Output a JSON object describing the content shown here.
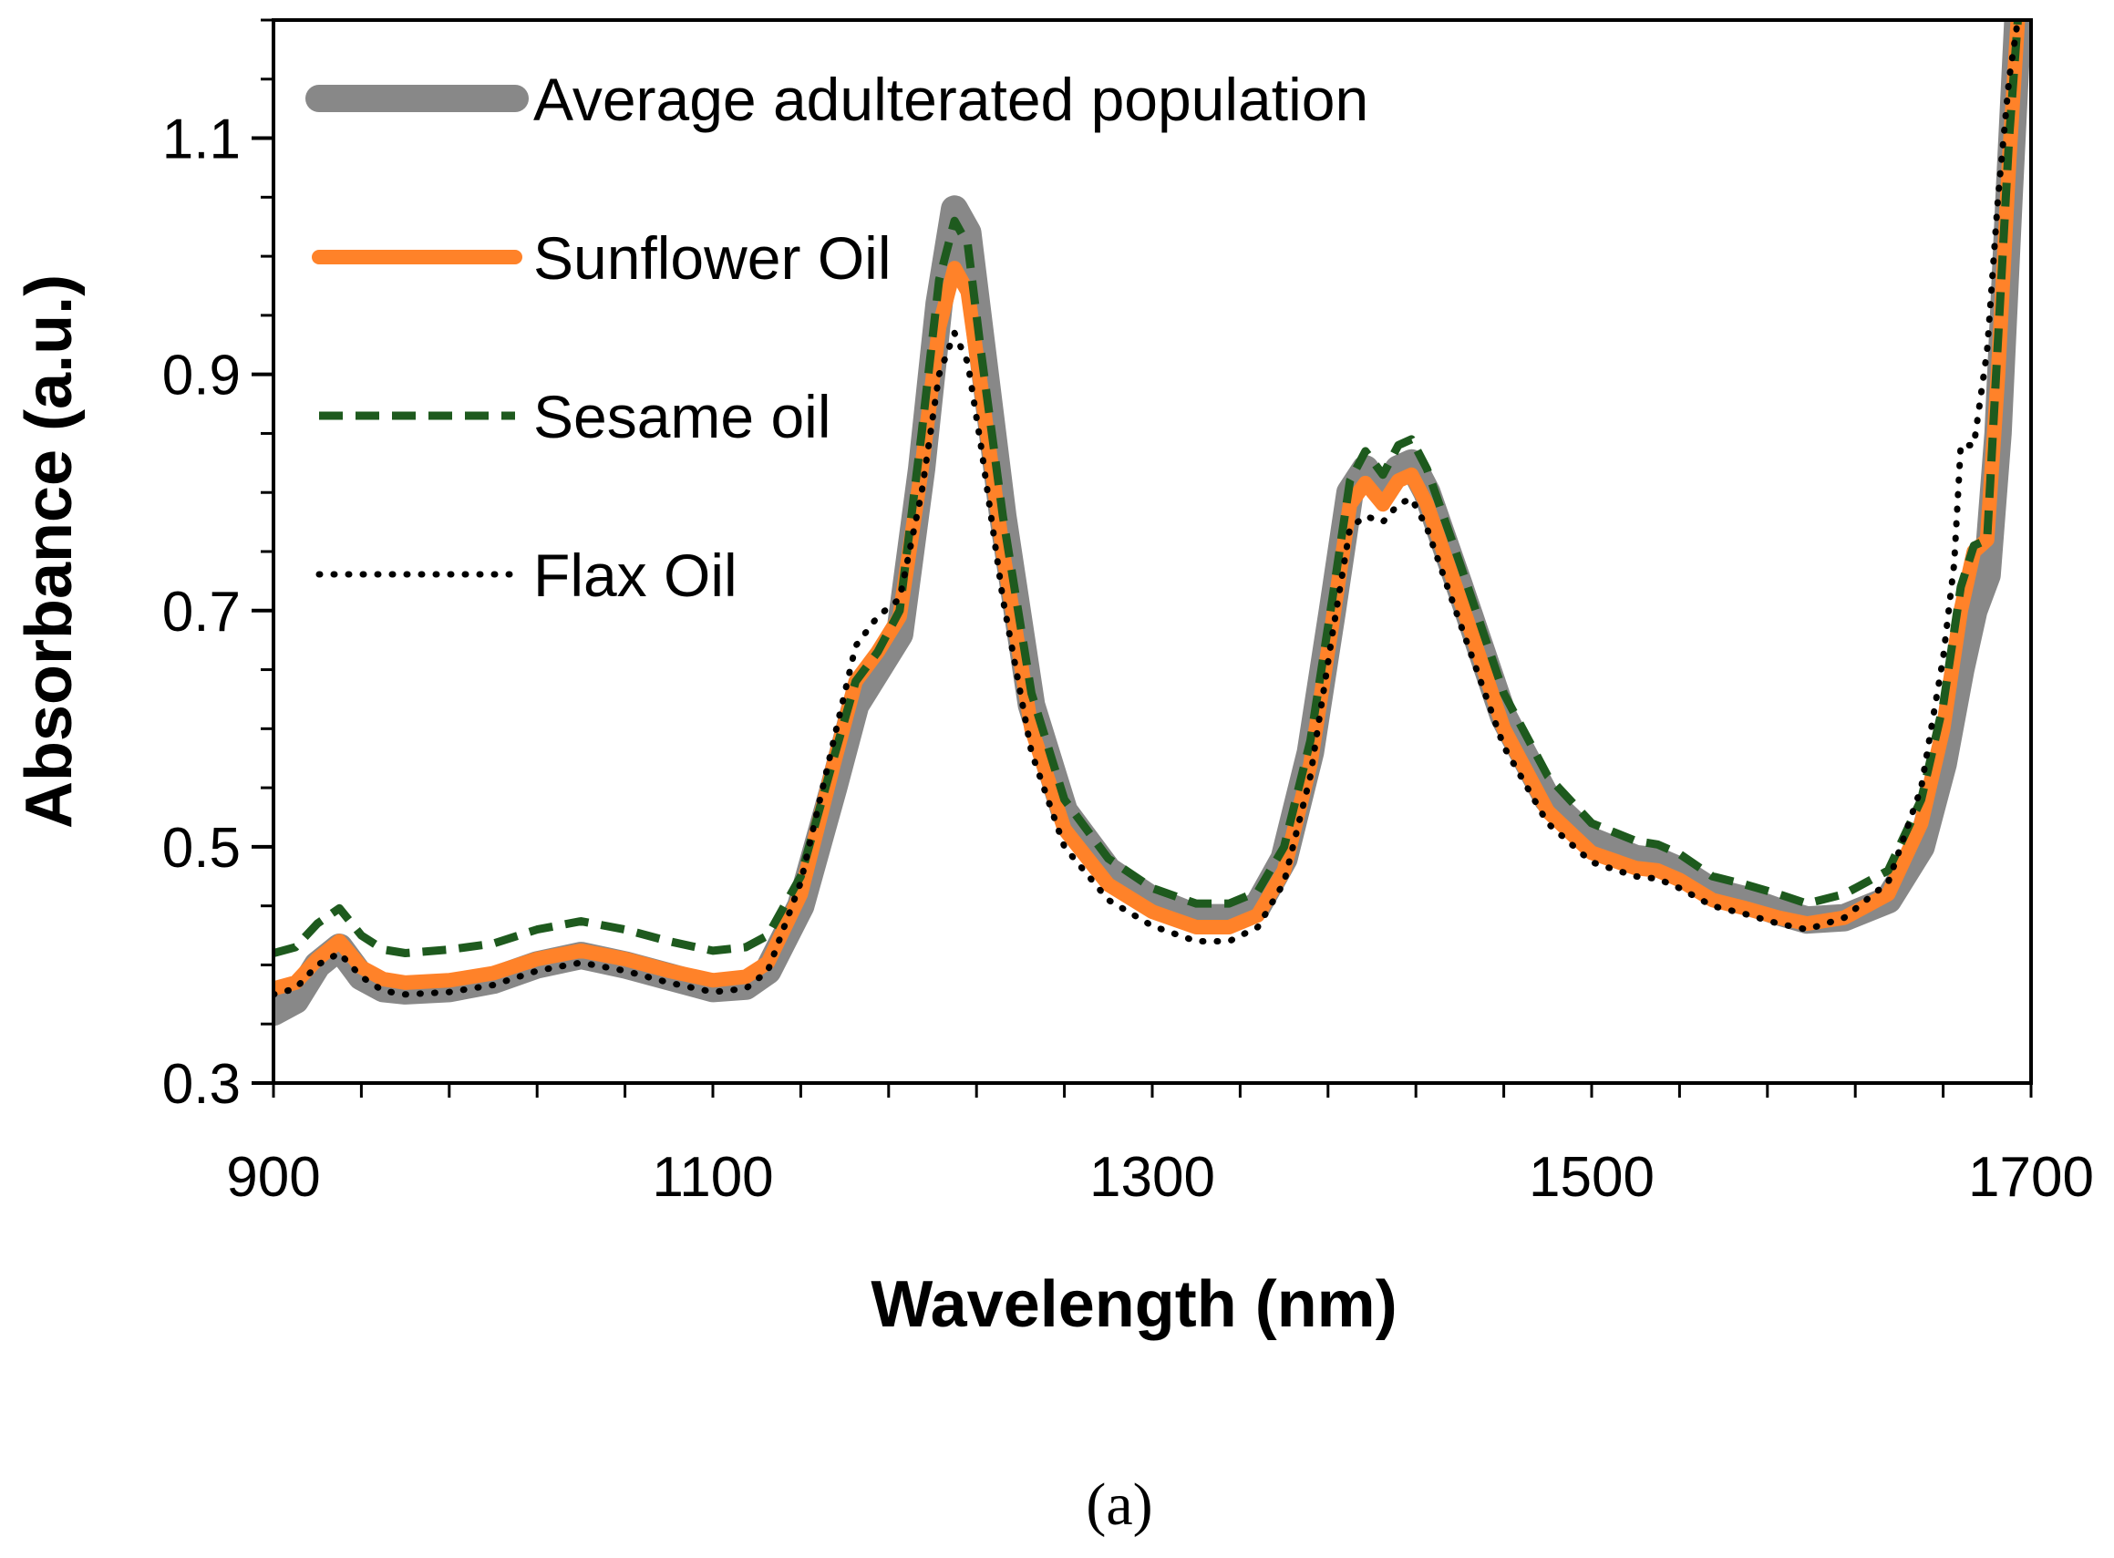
{
  "chart_data": {
    "type": "line",
    "title": "",
    "xlabel": "Wavelength (nm)",
    "ylabel": "Absorbance (a.u.)",
    "xlim": [
      900,
      1700
    ],
    "ylim": [
      0.3,
      1.2
    ],
    "xticks": [
      900,
      1100,
      1300,
      1500,
      1700
    ],
    "yticks": [
      0.3,
      0.5,
      0.7,
      0.9,
      1.1
    ],
    "y_minor_step": 0.05,
    "x_minor_step": 40,
    "grid": false,
    "legend_position": "top-left",
    "caption": "(a)",
    "series": [
      {
        "name": "Average adulterated population",
        "color": "#888888",
        "style": "solid-thick",
        "points": [
          [
            900,
            0.36
          ],
          [
            910,
            0.37
          ],
          [
            920,
            0.4
          ],
          [
            930,
            0.415
          ],
          [
            940,
            0.39
          ],
          [
            950,
            0.38
          ],
          [
            960,
            0.378
          ],
          [
            980,
            0.38
          ],
          [
            1000,
            0.387
          ],
          [
            1020,
            0.4
          ],
          [
            1040,
            0.408
          ],
          [
            1060,
            0.4
          ],
          [
            1080,
            0.39
          ],
          [
            1100,
            0.38
          ],
          [
            1115,
            0.382
          ],
          [
            1125,
            0.395
          ],
          [
            1140,
            0.45
          ],
          [
            1155,
            0.55
          ],
          [
            1165,
            0.62
          ],
          [
            1175,
            0.65
          ],
          [
            1185,
            0.68
          ],
          [
            1195,
            0.82
          ],
          [
            1203,
            0.96
          ],
          [
            1210,
            1.04
          ],
          [
            1216,
            1.02
          ],
          [
            1222,
            0.93
          ],
          [
            1232,
            0.78
          ],
          [
            1245,
            0.62
          ],
          [
            1260,
            0.53
          ],
          [
            1280,
            0.48
          ],
          [
            1300,
            0.455
          ],
          [
            1320,
            0.44
          ],
          [
            1335,
            0.44
          ],
          [
            1348,
            0.45
          ],
          [
            1360,
            0.49
          ],
          [
            1372,
            0.58
          ],
          [
            1382,
            0.7
          ],
          [
            1390,
            0.8
          ],
          [
            1397,
            0.82
          ],
          [
            1405,
            0.8
          ],
          [
            1412,
            0.82
          ],
          [
            1418,
            0.825
          ],
          [
            1425,
            0.8
          ],
          [
            1440,
            0.72
          ],
          [
            1460,
            0.61
          ],
          [
            1480,
            0.54
          ],
          [
            1500,
            0.505
          ],
          [
            1520,
            0.49
          ],
          [
            1530,
            0.488
          ],
          [
            1540,
            0.48
          ],
          [
            1555,
            0.462
          ],
          [
            1570,
            0.455
          ],
          [
            1585,
            0.445
          ],
          [
            1598,
            0.438
          ],
          [
            1615,
            0.44
          ],
          [
            1635,
            0.455
          ],
          [
            1650,
            0.5
          ],
          [
            1660,
            0.57
          ],
          [
            1668,
            0.65
          ],
          [
            1674,
            0.7
          ],
          [
            1680,
            0.73
          ],
          [
            1685,
            0.85
          ],
          [
            1690,
            1.05
          ],
          [
            1694,
            1.2
          ]
        ]
      },
      {
        "name": "Sunflower Oil",
        "color": "#ff8229",
        "style": "solid",
        "points": [
          [
            900,
            0.38
          ],
          [
            910,
            0.385
          ],
          [
            920,
            0.405
          ],
          [
            930,
            0.42
          ],
          [
            940,
            0.398
          ],
          [
            950,
            0.388
          ],
          [
            960,
            0.385
          ],
          [
            980,
            0.387
          ],
          [
            1000,
            0.393
          ],
          [
            1020,
            0.405
          ],
          [
            1040,
            0.412
          ],
          [
            1060,
            0.405
          ],
          [
            1080,
            0.395
          ],
          [
            1100,
            0.387
          ],
          [
            1115,
            0.39
          ],
          [
            1125,
            0.402
          ],
          [
            1140,
            0.46
          ],
          [
            1155,
            0.57
          ],
          [
            1165,
            0.64
          ],
          [
            1175,
            0.665
          ],
          [
            1185,
            0.695
          ],
          [
            1195,
            0.82
          ],
          [
            1203,
            0.94
          ],
          [
            1210,
            0.99
          ],
          [
            1216,
            0.97
          ],
          [
            1222,
            0.89
          ],
          [
            1232,
            0.75
          ],
          [
            1245,
            0.6
          ],
          [
            1260,
            0.515
          ],
          [
            1280,
            0.468
          ],
          [
            1300,
            0.445
          ],
          [
            1320,
            0.432
          ],
          [
            1335,
            0.432
          ],
          [
            1348,
            0.442
          ],
          [
            1360,
            0.48
          ],
          [
            1372,
            0.57
          ],
          [
            1382,
            0.69
          ],
          [
            1390,
            0.79
          ],
          [
            1397,
            0.808
          ],
          [
            1405,
            0.79
          ],
          [
            1412,
            0.81
          ],
          [
            1418,
            0.815
          ],
          [
            1425,
            0.79
          ],
          [
            1440,
            0.71
          ],
          [
            1460,
            0.6
          ],
          [
            1480,
            0.53
          ],
          [
            1500,
            0.495
          ],
          [
            1520,
            0.482
          ],
          [
            1530,
            0.48
          ],
          [
            1540,
            0.472
          ],
          [
            1555,
            0.455
          ],
          [
            1570,
            0.448
          ],
          [
            1585,
            0.44
          ],
          [
            1598,
            0.435
          ],
          [
            1615,
            0.44
          ],
          [
            1635,
            0.46
          ],
          [
            1650,
            0.52
          ],
          [
            1660,
            0.6
          ],
          [
            1668,
            0.7
          ],
          [
            1674,
            0.75
          ],
          [
            1680,
            0.76
          ],
          [
            1685,
            0.9
          ],
          [
            1690,
            1.08
          ],
          [
            1694,
            1.2
          ]
        ]
      },
      {
        "name": "Sesame oil",
        "color": "#1e5a1e",
        "style": "dashed",
        "points": [
          [
            900,
            0.41
          ],
          [
            910,
            0.415
          ],
          [
            920,
            0.435
          ],
          [
            930,
            0.448
          ],
          [
            940,
            0.425
          ],
          [
            950,
            0.413
          ],
          [
            960,
            0.41
          ],
          [
            980,
            0.413
          ],
          [
            1000,
            0.418
          ],
          [
            1020,
            0.43
          ],
          [
            1040,
            0.437
          ],
          [
            1060,
            0.43
          ],
          [
            1080,
            0.42
          ],
          [
            1100,
            0.412
          ],
          [
            1115,
            0.415
          ],
          [
            1125,
            0.425
          ],
          [
            1140,
            0.475
          ],
          [
            1155,
            0.575
          ],
          [
            1165,
            0.64
          ],
          [
            1175,
            0.665
          ],
          [
            1185,
            0.7
          ],
          [
            1195,
            0.85
          ],
          [
            1203,
            0.98
          ],
          [
            1210,
            1.03
          ],
          [
            1216,
            1.01
          ],
          [
            1222,
            0.92
          ],
          [
            1232,
            0.78
          ],
          [
            1245,
            0.63
          ],
          [
            1260,
            0.54
          ],
          [
            1280,
            0.49
          ],
          [
            1300,
            0.465
          ],
          [
            1320,
            0.452
          ],
          [
            1335,
            0.452
          ],
          [
            1348,
            0.462
          ],
          [
            1360,
            0.5
          ],
          [
            1372,
            0.59
          ],
          [
            1382,
            0.71
          ],
          [
            1390,
            0.81
          ],
          [
            1397,
            0.835
          ],
          [
            1405,
            0.815
          ],
          [
            1412,
            0.84
          ],
          [
            1418,
            0.845
          ],
          [
            1425,
            0.82
          ],
          [
            1440,
            0.74
          ],
          [
            1460,
            0.63
          ],
          [
            1480,
            0.56
          ],
          [
            1500,
            0.52
          ],
          [
            1520,
            0.505
          ],
          [
            1530,
            0.502
          ],
          [
            1540,
            0.494
          ],
          [
            1555,
            0.475
          ],
          [
            1570,
            0.468
          ],
          [
            1585,
            0.46
          ],
          [
            1598,
            0.452
          ],
          [
            1615,
            0.46
          ],
          [
            1635,
            0.48
          ],
          [
            1650,
            0.54
          ],
          [
            1660,
            0.62
          ],
          [
            1668,
            0.72
          ],
          [
            1674,
            0.755
          ],
          [
            1680,
            0.76
          ],
          [
            1685,
            0.93
          ],
          [
            1690,
            1.1
          ],
          [
            1694,
            1.2
          ]
        ]
      },
      {
        "name": "Flax Oil",
        "color": "#000000",
        "style": "dotted",
        "points": [
          [
            900,
            0.375
          ],
          [
            910,
            0.38
          ],
          [
            920,
            0.4
          ],
          [
            930,
            0.41
          ],
          [
            940,
            0.39
          ],
          [
            950,
            0.378
          ],
          [
            960,
            0.375
          ],
          [
            980,
            0.377
          ],
          [
            1000,
            0.383
          ],
          [
            1020,
            0.395
          ],
          [
            1040,
            0.402
          ],
          [
            1060,
            0.395
          ],
          [
            1080,
            0.385
          ],
          [
            1100,
            0.377
          ],
          [
            1115,
            0.38
          ],
          [
            1125,
            0.395
          ],
          [
            1140,
            0.47
          ],
          [
            1155,
            0.59
          ],
          [
            1165,
            0.67
          ],
          [
            1175,
            0.695
          ],
          [
            1185,
            0.71
          ],
          [
            1195,
            0.8
          ],
          [
            1203,
            0.9
          ],
          [
            1210,
            0.935
          ],
          [
            1216,
            0.91
          ],
          [
            1222,
            0.84
          ],
          [
            1232,
            0.71
          ],
          [
            1245,
            0.58
          ],
          [
            1260,
            0.5
          ],
          [
            1280,
            0.455
          ],
          [
            1300,
            0.433
          ],
          [
            1320,
            0.42
          ],
          [
            1335,
            0.42
          ],
          [
            1348,
            0.432
          ],
          [
            1360,
            0.47
          ],
          [
            1372,
            0.56
          ],
          [
            1382,
            0.68
          ],
          [
            1390,
            0.77
          ],
          [
            1397,
            0.78
          ],
          [
            1405,
            0.775
          ],
          [
            1412,
            0.79
          ],
          [
            1418,
            0.795
          ],
          [
            1425,
            0.77
          ],
          [
            1440,
            0.69
          ],
          [
            1460,
            0.585
          ],
          [
            1480,
            0.52
          ],
          [
            1500,
            0.487
          ],
          [
            1520,
            0.475
          ],
          [
            1530,
            0.473
          ],
          [
            1540,
            0.465
          ],
          [
            1555,
            0.45
          ],
          [
            1570,
            0.443
          ],
          [
            1585,
            0.435
          ],
          [
            1598,
            0.43
          ],
          [
            1615,
            0.44
          ],
          [
            1635,
            0.47
          ],
          [
            1650,
            0.55
          ],
          [
            1660,
            0.66
          ],
          [
            1665,
            0.74
          ],
          [
            1668,
            0.84
          ],
          [
            1674,
            0.84
          ],
          [
            1680,
            0.92
          ],
          [
            1685,
            1.05
          ],
          [
            1690,
            1.15
          ],
          [
            1694,
            1.2
          ]
        ]
      }
    ]
  }
}
